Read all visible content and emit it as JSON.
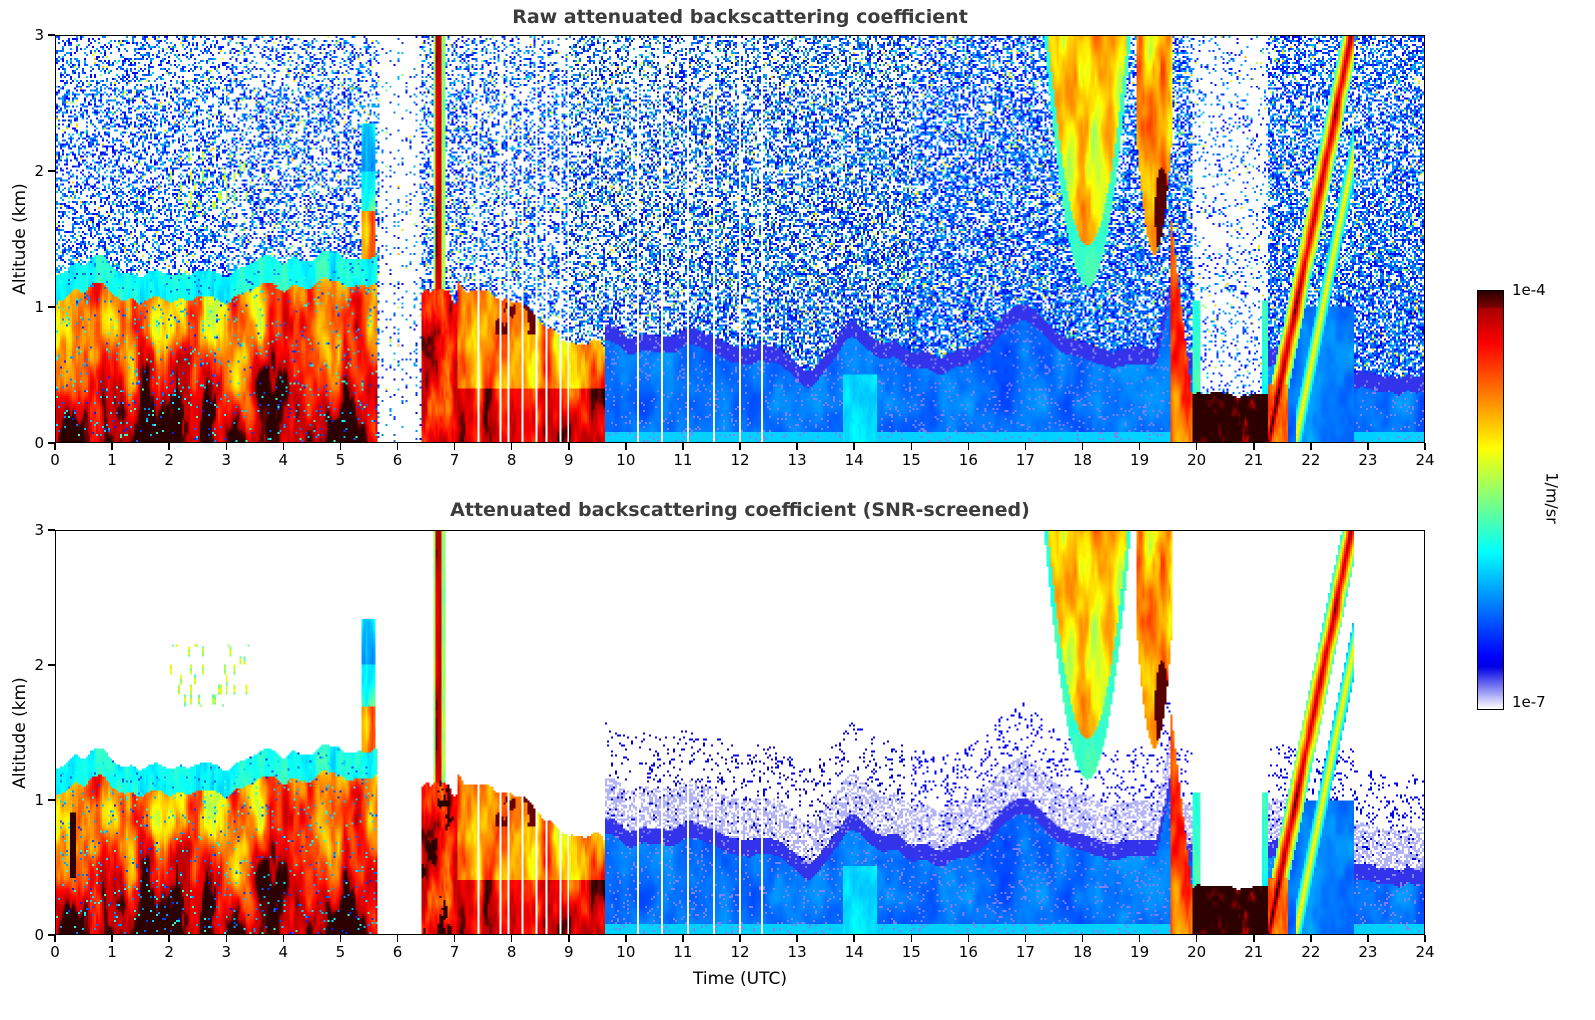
{
  "figure": {
    "background": "#ffffff",
    "title_color": "#3c3c3c"
  },
  "colorbar": {
    "label": "1/m/sr",
    "tick_top": "1e-4",
    "tick_bottom": "1e-7",
    "scale": "log",
    "colormap": "jet with white at minimum",
    "min": 1e-07,
    "max": 0.0001
  },
  "shared_x_axis_label": "Time (UTC)",
  "chart_data": [
    {
      "type": "heatmap",
      "title": "Raw attenuated backscattering coefficient",
      "xlabel": "",
      "ylabel": "Altitude (km)",
      "xlim": [
        0,
        24
      ],
      "ylim": [
        0,
        3
      ],
      "xticks": [
        0,
        1,
        2,
        3,
        4,
        5,
        6,
        7,
        8,
        9,
        10,
        11,
        12,
        13,
        14,
        15,
        16,
        17,
        18,
        19,
        20,
        21,
        22,
        23,
        24
      ],
      "yticks": [
        0,
        1,
        2,
        3
      ],
      "x_units": "hours UTC",
      "y_units": "km",
      "value_units": "1/m/sr",
      "color_scale": "log",
      "color_range": [
        1e-07,
        0.0001
      ],
      "grid": false,
      "legend": "colorbar right, shared between panels",
      "features": [
        "Strong orange/red aerosol layer from 0 to ~1.3-1.5 km between 00 and ~5.5 UTC",
        "Vertical white data-gap stripes around 5.7-6.4 UTC and scattered between 7.4 and 12.4 UTC",
        "Intense red column near 6.4-7.0 UTC below ~1 km with narrow red plume reaching 3 km near 6.7 UTC",
        "Layer decaying from ~1.2 to ~0.6 km between 7 and 9.5 UTC with dark red patches near 8 UTC at ~1 km",
        "Widespread cyan/blue speckle noise above the boundary layer over the whole day (raw, unscreened)",
        "Solid shallow blue layer below ~0.8-1.2 km from ~10 to 19.5 UTC",
        "Yellow/orange descending virga plumes from 3 km between ~17.4 and 19.5 UTC with dark red cores near 18.7 and 19.4 UTC at ~1.6-2 km",
        "White gap from ~20 to 21.2 UTC with very intense dark red echo below ~0.4 km",
        "Slanted orange plume rising from surface at ~21.3 UTC to 3 km by ~22.5 UTC"
      ]
    },
    {
      "type": "heatmap",
      "title": "Attenuated backscattering coefficient (SNR-screened)",
      "xlabel": "Time (UTC)",
      "ylabel": "Altitude (km)",
      "xlim": [
        0,
        24
      ],
      "ylim": [
        0,
        3
      ],
      "xticks": [
        0,
        1,
        2,
        3,
        4,
        5,
        6,
        7,
        8,
        9,
        10,
        11,
        12,
        13,
        14,
        15,
        16,
        17,
        18,
        19,
        20,
        21,
        22,
        23,
        24
      ],
      "yticks": [
        0,
        1,
        2,
        3
      ],
      "x_units": "hours UTC",
      "y_units": "km",
      "value_units": "1/m/sr",
      "color_scale": "log",
      "color_range": [
        1e-07,
        0.0001
      ],
      "grid": false,
      "legend": "colorbar right, shared between panels",
      "features": [
        "Same structures as raw panel but background speckle noise removed (white above signal)",
        "Boundary-layer aerosol 0-5.5 UTC with cyan fringes and saturated near-black cores",
        "Near-black saturated spots near 8 UTC (~1 km), 18.7 and 19.4 UTC (~1.6-1.8 km) and 20.2-21 UTC near surface",
        "Pale lavender (lowest detectable value) fringe around the shallow blue layer on the right half",
        "Slanted orange plume 21.3-22.6 UTC from surface to 3 km"
      ]
    }
  ]
}
